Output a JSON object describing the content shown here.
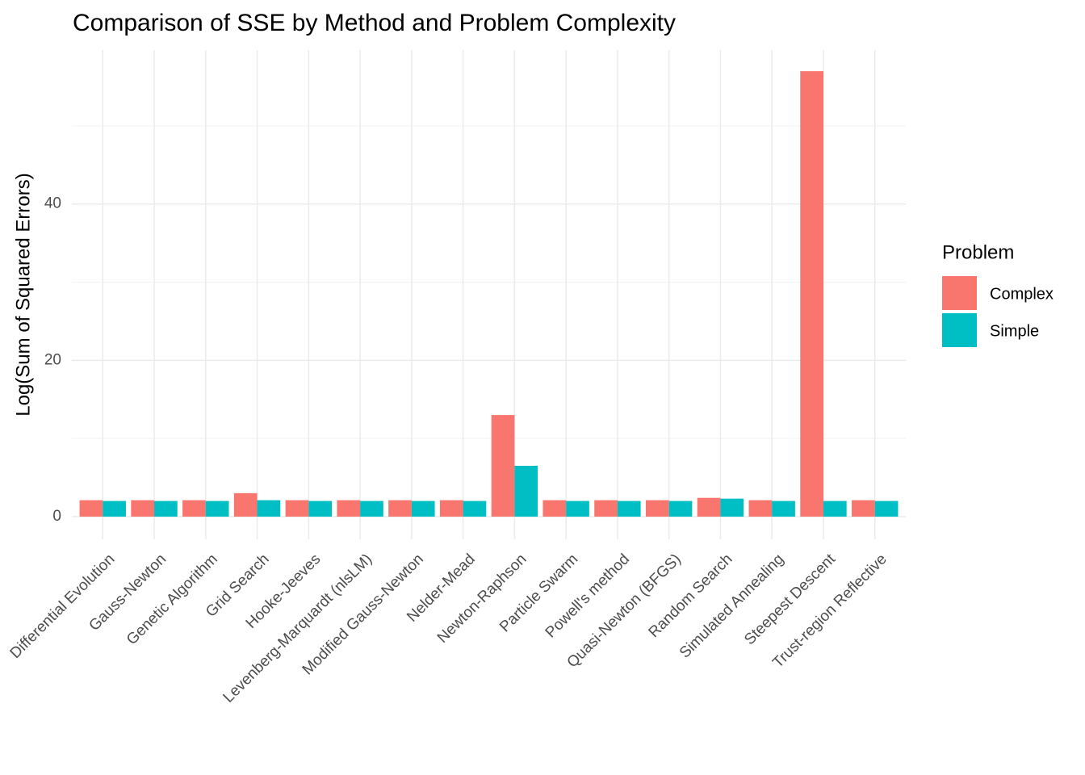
{
  "chart_data": {
    "type": "bar",
    "title": "Comparison of SSE by Method and Problem Complexity",
    "y_label": "Log(Sum of Squared Errors)",
    "categories": [
      "Differential Evolution",
      "Gauss-Newton",
      "Genetic Algorithm",
      "Grid Search",
      "Hooke-Jeeves",
      "Levenberg-Marquardt (nlsLM)",
      "Modified Gauss-Newton",
      "Nelder-Mead",
      "Newton-Raphson",
      "Particle Swarm",
      "Powell's method",
      "Quasi-Newton (BFGS)",
      "Random Search",
      "Simulated Annealing",
      "Steepest Descent",
      "Trust-region Reflective"
    ],
    "series": [
      {
        "name": "Complex",
        "color": "#f8766d",
        "values": [
          2.1,
          2.1,
          2.1,
          3.0,
          2.1,
          2.1,
          2.1,
          2.1,
          13.0,
          2.1,
          2.1,
          2.1,
          2.4,
          2.1,
          57.0,
          2.1
        ]
      },
      {
        "name": "Simple",
        "color": "#00bfc4",
        "values": [
          2.0,
          2.0,
          2.0,
          2.1,
          2.0,
          2.0,
          2.0,
          2.0,
          6.5,
          2.0,
          2.0,
          2.0,
          2.3,
          2.0,
          2.0,
          2.0
        ]
      }
    ],
    "legend_title": "Problem",
    "ylim": [
      -2.9,
      59.7
    ],
    "yticks": [
      0,
      20,
      40
    ],
    "grid": true
  }
}
